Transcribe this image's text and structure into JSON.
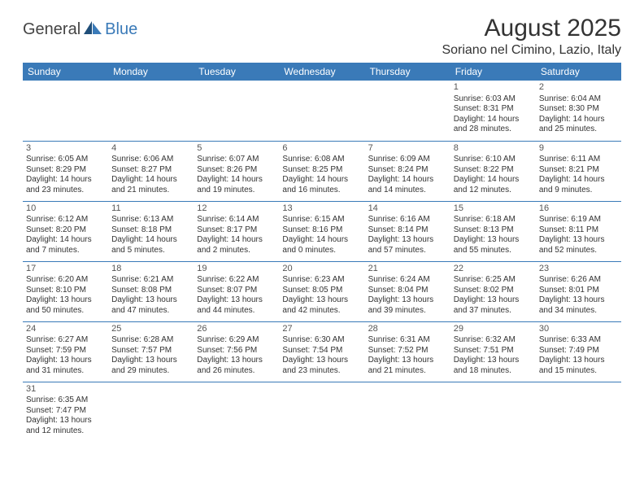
{
  "branding": {
    "logo_word1": "General",
    "logo_word2": "Blue",
    "logo_colors": {
      "word1": "#444444",
      "word2": "#3a7ab8",
      "sail_dark": "#1f4e79",
      "sail_light": "#3a7ab8"
    }
  },
  "header": {
    "title": "August 2025",
    "subtitle": "Soriano nel Cimino, Lazio, Italy"
  },
  "style": {
    "header_bg": "#3a7ab8",
    "header_text": "#ffffff",
    "cell_border": "#3a7ab8",
    "body_text": "#333333",
    "font_family": "Arial",
    "title_fontsize_pt": 22,
    "subtitle_fontsize_pt": 12,
    "dayhead_fontsize_pt": 9,
    "cell_fontsize_pt": 7.5
  },
  "calendar": {
    "day_headers": [
      "Sunday",
      "Monday",
      "Tuesday",
      "Wednesday",
      "Thursday",
      "Friday",
      "Saturday"
    ],
    "weeks": [
      [
        null,
        null,
        null,
        null,
        null,
        {
          "num": "1",
          "sunrise": "Sunrise: 6:03 AM",
          "sunset": "Sunset: 8:31 PM",
          "day1": "Daylight: 14 hours",
          "day2": "and 28 minutes."
        },
        {
          "num": "2",
          "sunrise": "Sunrise: 6:04 AM",
          "sunset": "Sunset: 8:30 PM",
          "day1": "Daylight: 14 hours",
          "day2": "and 25 minutes."
        }
      ],
      [
        {
          "num": "3",
          "sunrise": "Sunrise: 6:05 AM",
          "sunset": "Sunset: 8:29 PM",
          "day1": "Daylight: 14 hours",
          "day2": "and 23 minutes."
        },
        {
          "num": "4",
          "sunrise": "Sunrise: 6:06 AM",
          "sunset": "Sunset: 8:27 PM",
          "day1": "Daylight: 14 hours",
          "day2": "and 21 minutes."
        },
        {
          "num": "5",
          "sunrise": "Sunrise: 6:07 AM",
          "sunset": "Sunset: 8:26 PM",
          "day1": "Daylight: 14 hours",
          "day2": "and 19 minutes."
        },
        {
          "num": "6",
          "sunrise": "Sunrise: 6:08 AM",
          "sunset": "Sunset: 8:25 PM",
          "day1": "Daylight: 14 hours",
          "day2": "and 16 minutes."
        },
        {
          "num": "7",
          "sunrise": "Sunrise: 6:09 AM",
          "sunset": "Sunset: 8:24 PM",
          "day1": "Daylight: 14 hours",
          "day2": "and 14 minutes."
        },
        {
          "num": "8",
          "sunrise": "Sunrise: 6:10 AM",
          "sunset": "Sunset: 8:22 PM",
          "day1": "Daylight: 14 hours",
          "day2": "and 12 minutes."
        },
        {
          "num": "9",
          "sunrise": "Sunrise: 6:11 AM",
          "sunset": "Sunset: 8:21 PM",
          "day1": "Daylight: 14 hours",
          "day2": "and 9 minutes."
        }
      ],
      [
        {
          "num": "10",
          "sunrise": "Sunrise: 6:12 AM",
          "sunset": "Sunset: 8:20 PM",
          "day1": "Daylight: 14 hours",
          "day2": "and 7 minutes."
        },
        {
          "num": "11",
          "sunrise": "Sunrise: 6:13 AM",
          "sunset": "Sunset: 8:18 PM",
          "day1": "Daylight: 14 hours",
          "day2": "and 5 minutes."
        },
        {
          "num": "12",
          "sunrise": "Sunrise: 6:14 AM",
          "sunset": "Sunset: 8:17 PM",
          "day1": "Daylight: 14 hours",
          "day2": "and 2 minutes."
        },
        {
          "num": "13",
          "sunrise": "Sunrise: 6:15 AM",
          "sunset": "Sunset: 8:16 PM",
          "day1": "Daylight: 14 hours",
          "day2": "and 0 minutes."
        },
        {
          "num": "14",
          "sunrise": "Sunrise: 6:16 AM",
          "sunset": "Sunset: 8:14 PM",
          "day1": "Daylight: 13 hours",
          "day2": "and 57 minutes."
        },
        {
          "num": "15",
          "sunrise": "Sunrise: 6:18 AM",
          "sunset": "Sunset: 8:13 PM",
          "day1": "Daylight: 13 hours",
          "day2": "and 55 minutes."
        },
        {
          "num": "16",
          "sunrise": "Sunrise: 6:19 AM",
          "sunset": "Sunset: 8:11 PM",
          "day1": "Daylight: 13 hours",
          "day2": "and 52 minutes."
        }
      ],
      [
        {
          "num": "17",
          "sunrise": "Sunrise: 6:20 AM",
          "sunset": "Sunset: 8:10 PM",
          "day1": "Daylight: 13 hours",
          "day2": "and 50 minutes."
        },
        {
          "num": "18",
          "sunrise": "Sunrise: 6:21 AM",
          "sunset": "Sunset: 8:08 PM",
          "day1": "Daylight: 13 hours",
          "day2": "and 47 minutes."
        },
        {
          "num": "19",
          "sunrise": "Sunrise: 6:22 AM",
          "sunset": "Sunset: 8:07 PM",
          "day1": "Daylight: 13 hours",
          "day2": "and 44 minutes."
        },
        {
          "num": "20",
          "sunrise": "Sunrise: 6:23 AM",
          "sunset": "Sunset: 8:05 PM",
          "day1": "Daylight: 13 hours",
          "day2": "and 42 minutes."
        },
        {
          "num": "21",
          "sunrise": "Sunrise: 6:24 AM",
          "sunset": "Sunset: 8:04 PM",
          "day1": "Daylight: 13 hours",
          "day2": "and 39 minutes."
        },
        {
          "num": "22",
          "sunrise": "Sunrise: 6:25 AM",
          "sunset": "Sunset: 8:02 PM",
          "day1": "Daylight: 13 hours",
          "day2": "and 37 minutes."
        },
        {
          "num": "23",
          "sunrise": "Sunrise: 6:26 AM",
          "sunset": "Sunset: 8:01 PM",
          "day1": "Daylight: 13 hours",
          "day2": "and 34 minutes."
        }
      ],
      [
        {
          "num": "24",
          "sunrise": "Sunrise: 6:27 AM",
          "sunset": "Sunset: 7:59 PM",
          "day1": "Daylight: 13 hours",
          "day2": "and 31 minutes."
        },
        {
          "num": "25",
          "sunrise": "Sunrise: 6:28 AM",
          "sunset": "Sunset: 7:57 PM",
          "day1": "Daylight: 13 hours",
          "day2": "and 29 minutes."
        },
        {
          "num": "26",
          "sunrise": "Sunrise: 6:29 AM",
          "sunset": "Sunset: 7:56 PM",
          "day1": "Daylight: 13 hours",
          "day2": "and 26 minutes."
        },
        {
          "num": "27",
          "sunrise": "Sunrise: 6:30 AM",
          "sunset": "Sunset: 7:54 PM",
          "day1": "Daylight: 13 hours",
          "day2": "and 23 minutes."
        },
        {
          "num": "28",
          "sunrise": "Sunrise: 6:31 AM",
          "sunset": "Sunset: 7:52 PM",
          "day1": "Daylight: 13 hours",
          "day2": "and 21 minutes."
        },
        {
          "num": "29",
          "sunrise": "Sunrise: 6:32 AM",
          "sunset": "Sunset: 7:51 PM",
          "day1": "Daylight: 13 hours",
          "day2": "and 18 minutes."
        },
        {
          "num": "30",
          "sunrise": "Sunrise: 6:33 AM",
          "sunset": "Sunset: 7:49 PM",
          "day1": "Daylight: 13 hours",
          "day2": "and 15 minutes."
        }
      ],
      [
        {
          "num": "31",
          "sunrise": "Sunrise: 6:35 AM",
          "sunset": "Sunset: 7:47 PM",
          "day1": "Daylight: 13 hours",
          "day2": "and 12 minutes."
        },
        null,
        null,
        null,
        null,
        null,
        null
      ]
    ]
  }
}
